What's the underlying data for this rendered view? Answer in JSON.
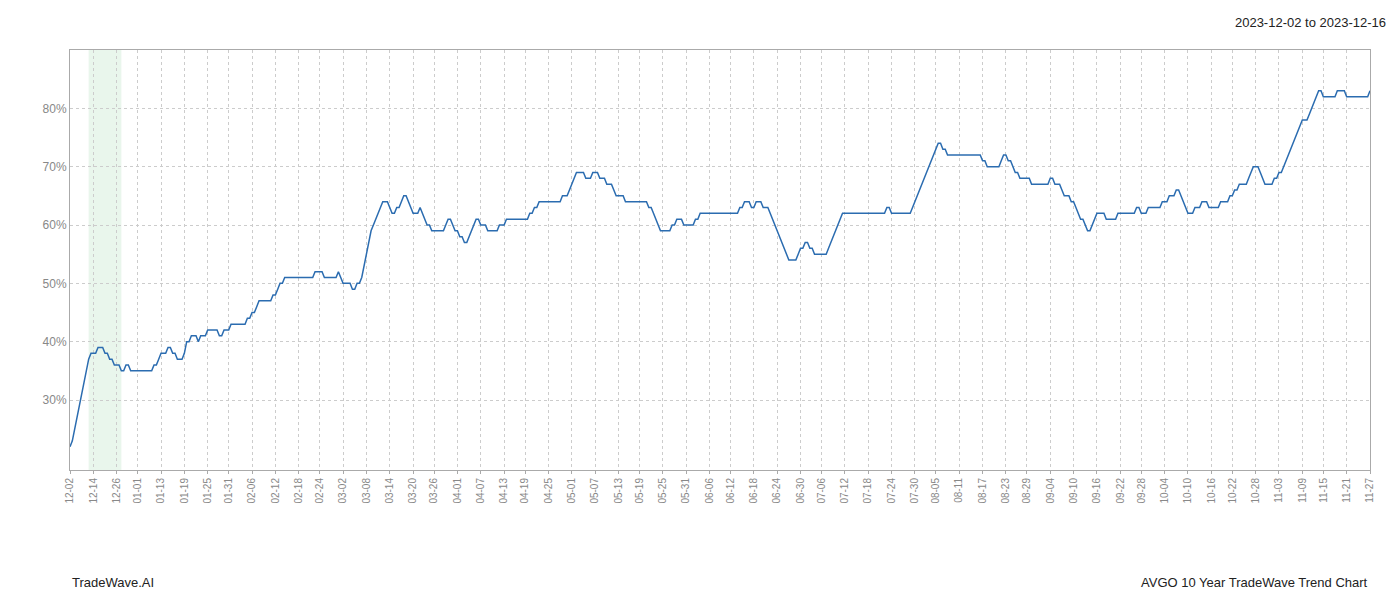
{
  "chart_data": {
    "type": "line",
    "title": "2023-12-02 to 2023-12-16",
    "annotations": [
      "TradeWave.AI",
      "AVGO 10 Year TradeWave Trend Chart"
    ],
    "color": "#2b6cb0",
    "grid": true,
    "highlight": {
      "start": 8,
      "end": 22,
      "color": "#d4edda"
    },
    "ylim": [
      18,
      90
    ],
    "yticks": [
      {
        "value": 30,
        "label": "30%"
      },
      {
        "value": 40,
        "label": "40%"
      },
      {
        "value": 50,
        "label": "50%"
      },
      {
        "value": 60,
        "label": "60%"
      },
      {
        "value": 70,
        "label": "70%"
      },
      {
        "value": 80,
        "label": "80%"
      }
    ],
    "categories": [
      "12-02",
      null,
      null,
      null,
      null,
      null,
      null,
      null,
      null,
      null,
      "12-14",
      null,
      null,
      null,
      null,
      null,
      null,
      null,
      null,
      null,
      "12-26",
      null,
      null,
      null,
      null,
      null,
      null,
      null,
      null,
      "01-01",
      null,
      null,
      null,
      null,
      null,
      null,
      null,
      null,
      null,
      "01-13",
      null,
      null,
      null,
      null,
      null,
      null,
      null,
      null,
      null,
      "01-19",
      null,
      null,
      null,
      null,
      null,
      null,
      null,
      null,
      null,
      "01-25",
      null,
      null,
      null,
      null,
      null,
      null,
      null,
      null,
      "01-31",
      null,
      null,
      null,
      null,
      null,
      null,
      null,
      null,
      null,
      "02-06",
      null,
      null,
      null,
      null,
      null,
      null,
      null,
      null,
      null,
      "02-12",
      null,
      null,
      null,
      null,
      null,
      null,
      null,
      null,
      null,
      "02-18",
      null,
      null,
      null,
      null,
      null,
      null,
      null,
      null,
      "02-24",
      null,
      null,
      null,
      null,
      null,
      null,
      null,
      null,
      null,
      "03-02",
      null,
      null,
      null,
      null,
      null,
      null,
      null,
      null,
      null,
      "03-08",
      null,
      null,
      null,
      null,
      null,
      null,
      null,
      null,
      null,
      "03-14",
      null,
      null,
      null,
      null,
      null,
      null,
      null,
      null,
      null,
      "03-20",
      null,
      null,
      null,
      null,
      null,
      null,
      null,
      null,
      "03-26",
      null,
      null,
      null,
      null,
      null,
      null,
      null,
      null,
      null,
      "04-01",
      null,
      null,
      null,
      null,
      null,
      null,
      null,
      null,
      null,
      "04-07",
      null,
      null,
      null,
      null,
      null,
      null,
      null,
      null,
      null,
      "04-13",
      null,
      null,
      null,
      null,
      null,
      null,
      null,
      null,
      "04-19",
      null,
      null,
      null,
      null,
      null,
      null,
      null,
      null,
      null,
      "04-25",
      null,
      null,
      null,
      null,
      null,
      null,
      null,
      null,
      null,
      "05-01",
      null,
      null,
      null,
      null,
      null,
      null,
      null,
      null,
      null,
      "05-07",
      null,
      null,
      null,
      null,
      null,
      null,
      null,
      null,
      null,
      "05-13",
      null,
      null,
      null,
      null,
      null,
      null,
      null,
      null,
      "05-19",
      null,
      null,
      null,
      null,
      null,
      null,
      null,
      null,
      null,
      "05-25",
      null,
      null,
      null,
      null,
      null,
      null,
      null,
      null,
      null,
      "05-31",
      null,
      null,
      null,
      null,
      null,
      null,
      null,
      null,
      null,
      "06-06",
      null,
      null,
      null,
      null,
      null,
      null,
      null,
      null,
      "06-12",
      null,
      null,
      null,
      null,
      null,
      null,
      null,
      null,
      null,
      "06-18",
      null,
      null,
      null,
      null,
      null,
      null,
      null,
      null,
      null,
      "06-24",
      null,
      null,
      null,
      null,
      null,
      null,
      null,
      null,
      null,
      "06-30",
      null,
      null,
      null,
      null,
      null,
      null,
      null,
      null,
      "07-06",
      null,
      null,
      null,
      null,
      null,
      null,
      null,
      null,
      null,
      "07-12",
      null,
      null,
      null,
      null,
      null,
      null,
      null,
      null,
      null,
      "07-18",
      null,
      null,
      null,
      null,
      null,
      null,
      null,
      null,
      null,
      "07-24",
      null,
      null,
      null,
      null,
      null,
      null,
      null,
      null,
      null,
      "07-30",
      null,
      null,
      null,
      null,
      null,
      null,
      null,
      null,
      "08-05",
      null,
      null,
      null,
      null,
      null,
      null,
      null,
      null,
      null,
      "08-11",
      null,
      null,
      null,
      null,
      null,
      null,
      null,
      null,
      null,
      "08-17",
      null,
      null,
      null,
      null,
      null,
      null,
      null,
      null,
      null,
      "08-23",
      null,
      null,
      null,
      null,
      null,
      null,
      null,
      null,
      "08-29",
      null,
      null,
      null,
      null,
      null,
      null,
      null,
      null,
      null,
      "09-04",
      null,
      null,
      null,
      null,
      null,
      null,
      null,
      null,
      null,
      "09-10",
      null,
      null,
      null,
      null,
      null,
      null,
      null,
      null,
      null,
      "09-16",
      null,
      null,
      null,
      null,
      null,
      null,
      null,
      null,
      null,
      "09-22",
      null,
      null,
      null,
      null,
      null,
      null,
      null,
      null,
      "09-28",
      null,
      null,
      null,
      null,
      null,
      null,
      null,
      null,
      null,
      "10-04",
      null,
      null,
      null,
      null,
      null,
      null,
      null,
      null,
      null,
      "10-10",
      null,
      null,
      null,
      null,
      null,
      null,
      null,
      null,
      null,
      "10-16",
      null,
      null,
      null,
      null,
      null,
      null,
      null,
      null,
      "10-22",
      null,
      null,
      null,
      null,
      null,
      null,
      null,
      null,
      null,
      "10-28",
      null,
      null,
      null,
      null,
      null,
      null,
      null,
      null,
      null,
      "11-03",
      null,
      null,
      null,
      null,
      null,
      null,
      null,
      null,
      null,
      "11-09",
      null,
      null,
      null,
      null,
      null,
      null,
      null,
      null,
      "11-15",
      null,
      null,
      null,
      null,
      null,
      null,
      null,
      null,
      null,
      "11-21",
      null,
      null,
      null,
      null,
      null,
      null,
      null,
      null,
      null,
      "11-27"
    ],
    "values": [
      22,
      23,
      25,
      27,
      29,
      31,
      33,
      35,
      37,
      38,
      38,
      38,
      39,
      39,
      39,
      38,
      38,
      37,
      37,
      36,
      36,
      36,
      35,
      35,
      36,
      36,
      35,
      35,
      35,
      35,
      35,
      35,
      35,
      35,
      35,
      35,
      36,
      36,
      37,
      38,
      38,
      38,
      39,
      39,
      38,
      38,
      37,
      37,
      37,
      38,
      40,
      40,
      41,
      41,
      41,
      40,
      41,
      41,
      41,
      42,
      42,
      42,
      42,
      42,
      41,
      41,
      42,
      42,
      42,
      43,
      43,
      43,
      43,
      43,
      43,
      43,
      44,
      44,
      45,
      45,
      46,
      47,
      47,
      47,
      47,
      47,
      47,
      48,
      48,
      49,
      50,
      50,
      51,
      51,
      51,
      51,
      51,
      51,
      51,
      51,
      51,
      51,
      51,
      51,
      51,
      52,
      52,
      52,
      52,
      51,
      51,
      51,
      51,
      51,
      51,
      52,
      51,
      50,
      50,
      50,
      50,
      49,
      49,
      50,
      50,
      51,
      53,
      55,
      57,
      59,
      60,
      61,
      62,
      63,
      64,
      64,
      64,
      63,
      62,
      62,
      63,
      63,
      64,
      65,
      65,
      64,
      63,
      62,
      62,
      62,
      63,
      62,
      61,
      60,
      60,
      59,
      59,
      59,
      59,
      59,
      59,
      60,
      61,
      61,
      60,
      59,
      59,
      58,
      58,
      57,
      57,
      58,
      59,
      60,
      61,
      61,
      60,
      60,
      60,
      59,
      59,
      59,
      59,
      59,
      60,
      60,
      60,
      61,
      61,
      61,
      61,
      61,
      61,
      61,
      61,
      61,
      61,
      62,
      62,
      63,
      63,
      64,
      64,
      64,
      64,
      64,
      64,
      64,
      64,
      64,
      64,
      65,
      65,
      65,
      66,
      67,
      68,
      69,
      69,
      69,
      69,
      68,
      68,
      68,
      69,
      69,
      69,
      68,
      68,
      68,
      67,
      67,
      67,
      66,
      65,
      65,
      65,
      65,
      64,
      64,
      64,
      64,
      64,
      64,
      64,
      64,
      64,
      64,
      63,
      63,
      62,
      61,
      60,
      59,
      59,
      59,
      59,
      59,
      60,
      60,
      61,
      61,
      61,
      60,
      60,
      60,
      60,
      60,
      61,
      61,
      62,
      62,
      62,
      62,
      62,
      62,
      62,
      62,
      62,
      62,
      62,
      62,
      62,
      62,
      62,
      62,
      62,
      63,
      63,
      64,
      64,
      64,
      63,
      63,
      64,
      64,
      64,
      63,
      63,
      63,
      62,
      61,
      60,
      59,
      58,
      57,
      56,
      55,
      54,
      54,
      54,
      54,
      55,
      56,
      56,
      57,
      57,
      56,
      56,
      55,
      55,
      55,
      55,
      55,
      55,
      56,
      57,
      58,
      59,
      60,
      61,
      62,
      62,
      62,
      62,
      62,
      62,
      62,
      62,
      62,
      62,
      62,
      62,
      62,
      62,
      62,
      62,
      62,
      62,
      62,
      63,
      63,
      62,
      62,
      62,
      62,
      62,
      62,
      62,
      62,
      62,
      63,
      64,
      65,
      66,
      67,
      68,
      69,
      70,
      71,
      72,
      73,
      74,
      74,
      73,
      73,
      72,
      72,
      72,
      72,
      72,
      72,
      72,
      72,
      72,
      72,
      72,
      72,
      72,
      72,
      72,
      71,
      71,
      70,
      70,
      70,
      70,
      70,
      70,
      71,
      72,
      72,
      71,
      71,
      70,
      69,
      69,
      68,
      68,
      68,
      68,
      68,
      67,
      67,
      67,
      67,
      67,
      67,
      67,
      67,
      68,
      68,
      67,
      67,
      67,
      66,
      65,
      65,
      65,
      64,
      64,
      63,
      62,
      61,
      61,
      60,
      59,
      59,
      60,
      61,
      62,
      62,
      62,
      62,
      61,
      61,
      61,
      61,
      61,
      62,
      62,
      62,
      62,
      62,
      62,
      62,
      62,
      63,
      63,
      62,
      62,
      62,
      63,
      63,
      63,
      63,
      63,
      63,
      64,
      64,
      64,
      65,
      65,
      65,
      66,
      66,
      65,
      64,
      63,
      62,
      62,
      62,
      63,
      63,
      63,
      64,
      64,
      64,
      63,
      63,
      63,
      63,
      63,
      64,
      64,
      64,
      64,
      65,
      65,
      66,
      66,
      67,
      67,
      67,
      67,
      68,
      69,
      70,
      70,
      70,
      69,
      68,
      67,
      67,
      67,
      67,
      68,
      68,
      69,
      69,
      70,
      71,
      72,
      73,
      74,
      75,
      76,
      77,
      78,
      78,
      78,
      79,
      80,
      81,
      82,
      83,
      83,
      82,
      82,
      82,
      82,
      82,
      82,
      83,
      83,
      83,
      83,
      82,
      82,
      82,
      82,
      82,
      82,
      82,
      82,
      82,
      82,
      83
    ]
  }
}
